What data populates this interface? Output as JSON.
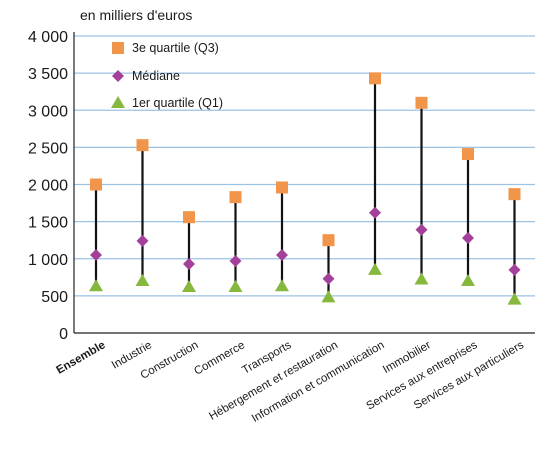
{
  "chart_data": {
    "type": "scatter",
    "unit_label": "en milliers d'euros",
    "ylim": [
      0,
      4000
    ],
    "yticks": [
      0,
      500,
      1000,
      1500,
      2000,
      2500,
      3000,
      3500,
      4000
    ],
    "ytick_labels": [
      "0",
      "500",
      "1 000",
      "1 500",
      "2 000",
      "2 500",
      "3 000",
      "3 500",
      "4 000"
    ],
    "grid": true,
    "legend_position": "top-left",
    "categories": [
      "Ensemble",
      "Industrie",
      "Construction",
      "Commerce",
      "Transports",
      "Hébergement et restauration",
      "Information et communication",
      "Immobilier",
      "Services aux entreprises",
      "Services aux particuliers"
    ],
    "series": [
      {
        "name": "3e quartile (Q3)",
        "marker": "square",
        "color": "#f0954a",
        "values": [
          2000,
          2530,
          1560,
          1830,
          1960,
          1250,
          3430,
          3100,
          2410,
          1870
        ]
      },
      {
        "name": "Médiane",
        "marker": "diamond",
        "color": "#a3419a",
        "values": [
          1050,
          1240,
          930,
          970,
          1050,
          730,
          1620,
          1390,
          1280,
          850
        ]
      },
      {
        "name": "1er quartile (Q1)",
        "marker": "triangle",
        "color": "#86b83e",
        "values": [
          630,
          700,
          620,
          620,
          630,
          480,
          850,
          720,
          700,
          450
        ]
      }
    ],
    "colors": {
      "grid": "#9cc2e4",
      "whisker": "#111111"
    }
  }
}
